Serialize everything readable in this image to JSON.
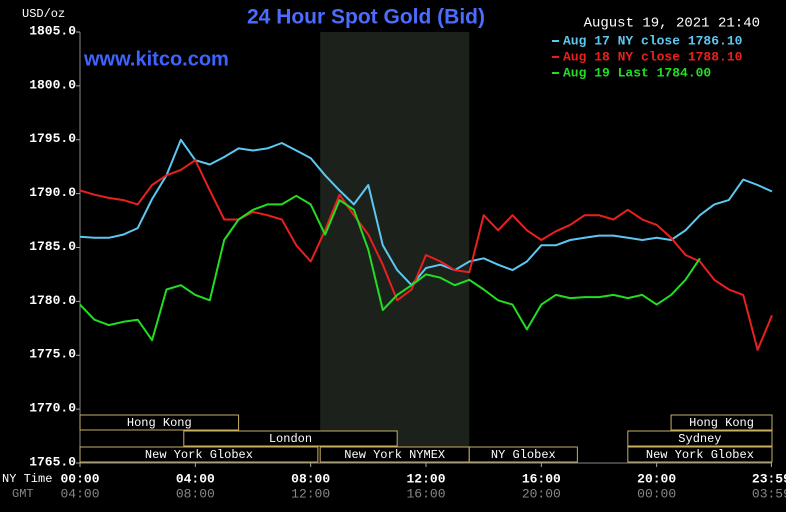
{
  "chart_data": {
    "type": "line",
    "title": "24 Hour Spot Gold (Bid)",
    "timestamp": "August 19, 2021 21:40",
    "watermark": "www.kitco.com",
    "ylabel": "USD/oz",
    "xlabel": "NY Time",
    "x2label": "GMT",
    "x": [
      0,
      0.5,
      1,
      1.5,
      2,
      2.5,
      3,
      3.5,
      4,
      4.5,
      5,
      5.5,
      6,
      6.5,
      7,
      7.5,
      8,
      8.5,
      9,
      9.5,
      10,
      10.5,
      11,
      11.5,
      12,
      12.5,
      13,
      13.5,
      14,
      14.5,
      15,
      15.5,
      16,
      16.5,
      17,
      17.5,
      18,
      18.5,
      19,
      19.5,
      20,
      20.5,
      21,
      21.5,
      22,
      22.5,
      23,
      23.5,
      24
    ],
    "series": [
      {
        "name": "Aug 17 NY close 1786.10",
        "color": "#5cc8f2",
        "values": [
          1786.0,
          1785.9,
          1785.9,
          1786.2,
          1786.8,
          1789.5,
          1791.7,
          1795.0,
          1793.1,
          1792.7,
          1793.4,
          1794.2,
          1794.0,
          1794.2,
          1794.7,
          1794.0,
          1793.3,
          1791.7,
          1790.3,
          1789.0,
          1790.8,
          1785.2,
          1782.9,
          1781.5,
          1783.1,
          1783.4,
          1782.9,
          1783.7,
          1784.0,
          1783.4,
          1782.9,
          1783.7,
          1785.2,
          1785.2,
          1785.7,
          1785.9,
          1786.1,
          1786.1,
          1785.9,
          1785.7,
          1785.9,
          1785.7,
          1786.6,
          1788.0,
          1789.0,
          1789.4,
          1791.3,
          1790.8,
          1790.2
        ]
      },
      {
        "name": "Aug 18 NY close 1788.10",
        "color": "#e8201e",
        "values": [
          1790.3,
          1789.9,
          1789.6,
          1789.4,
          1789.0,
          1790.8,
          1791.7,
          1792.2,
          1793.1,
          1790.3,
          1787.6,
          1787.6,
          1788.3,
          1788.0,
          1787.6,
          1785.2,
          1783.7,
          1786.6,
          1789.9,
          1788.0,
          1786.2,
          1783.4,
          1780.1,
          1781.1,
          1784.3,
          1783.7,
          1782.9,
          1782.7,
          1788.0,
          1786.6,
          1788.0,
          1786.6,
          1785.7,
          1786.5,
          1787.1,
          1788.0,
          1788.0,
          1787.6,
          1788.5,
          1787.6,
          1787.1,
          1785.9,
          1784.3,
          1783.7,
          1782.0,
          1781.1,
          1780.6,
          1775.5,
          1778.7
        ]
      },
      {
        "name": "Aug 19 Last 1784.00",
        "color": "#22dd22",
        "values": [
          1779.7,
          1778.3,
          1777.8,
          1778.1,
          1778.3,
          1776.4,
          1781.1,
          1781.5,
          1780.6,
          1780.1,
          1785.7,
          1787.6,
          1788.5,
          1789.0,
          1789.0,
          1789.8,
          1789.0,
          1786.2,
          1789.4,
          1788.5,
          1784.8,
          1779.2,
          1780.6,
          1781.5,
          1782.5,
          1782.2,
          1781.5,
          1782.0,
          1781.1,
          1780.1,
          1779.7,
          1777.4,
          1779.7,
          1780.6,
          1780.3,
          1780.4,
          1780.4,
          1780.6,
          1780.3,
          1780.6,
          1779.7,
          1780.6,
          1782.0,
          1784.0,
          null,
          null,
          null,
          null,
          null
        ]
      }
    ],
    "xlim": [
      0,
      24
    ],
    "ylim": [
      1765,
      1805
    ],
    "yticks": [
      {
        "value": 1765,
        "label": "1765.0"
      },
      {
        "value": 1770,
        "label": "1770.0"
      },
      {
        "value": 1775,
        "label": "1775.0"
      },
      {
        "value": 1780,
        "label": "1780.0"
      },
      {
        "value": 1785,
        "label": "1785.0"
      },
      {
        "value": 1790,
        "label": "1790.0"
      },
      {
        "value": 1795,
        "label": "1795.0"
      },
      {
        "value": 1800,
        "label": "1800.0"
      },
      {
        "value": 1805,
        "label": "1805.0"
      }
    ],
    "xticks": [
      {
        "value": 0,
        "label": "00:00"
      },
      {
        "value": 4,
        "label": "04:00"
      },
      {
        "value": 8,
        "label": "08:00"
      },
      {
        "value": 12,
        "label": "12:00"
      },
      {
        "value": 16,
        "label": "16:00"
      },
      {
        "value": 20,
        "label": "20:00"
      },
      {
        "value": 23.98,
        "label": "23:59"
      }
    ],
    "gmt_ticks": [
      "04:00",
      "08:00",
      "12:00",
      "16:00",
      "20:00",
      "00:00",
      "03:59"
    ],
    "shaded_range": [
      8.33,
      13.5
    ],
    "session_rows": [
      [
        {
          "label": "Hong Kong",
          "start": 0,
          "end": 5.5
        },
        {
          "label": "Hong Kong",
          "start": 20.5,
          "end": 24
        }
      ],
      [
        {
          "label": "London",
          "start": 3.6,
          "end": 11
        },
        {
          "label": "Sydney",
          "start": 19,
          "end": 24
        }
      ],
      [
        {
          "label": "New York Globex",
          "start": 0,
          "end": 8.25
        },
        {
          "label": "New York NYMEX",
          "start": 8.33,
          "end": 13.5
        },
        {
          "label": "NY Globex",
          "start": 13.5,
          "end": 17.25
        },
        {
          "label": "New York Globex",
          "start": 19,
          "end": 24
        }
      ]
    ],
    "grid": false
  }
}
